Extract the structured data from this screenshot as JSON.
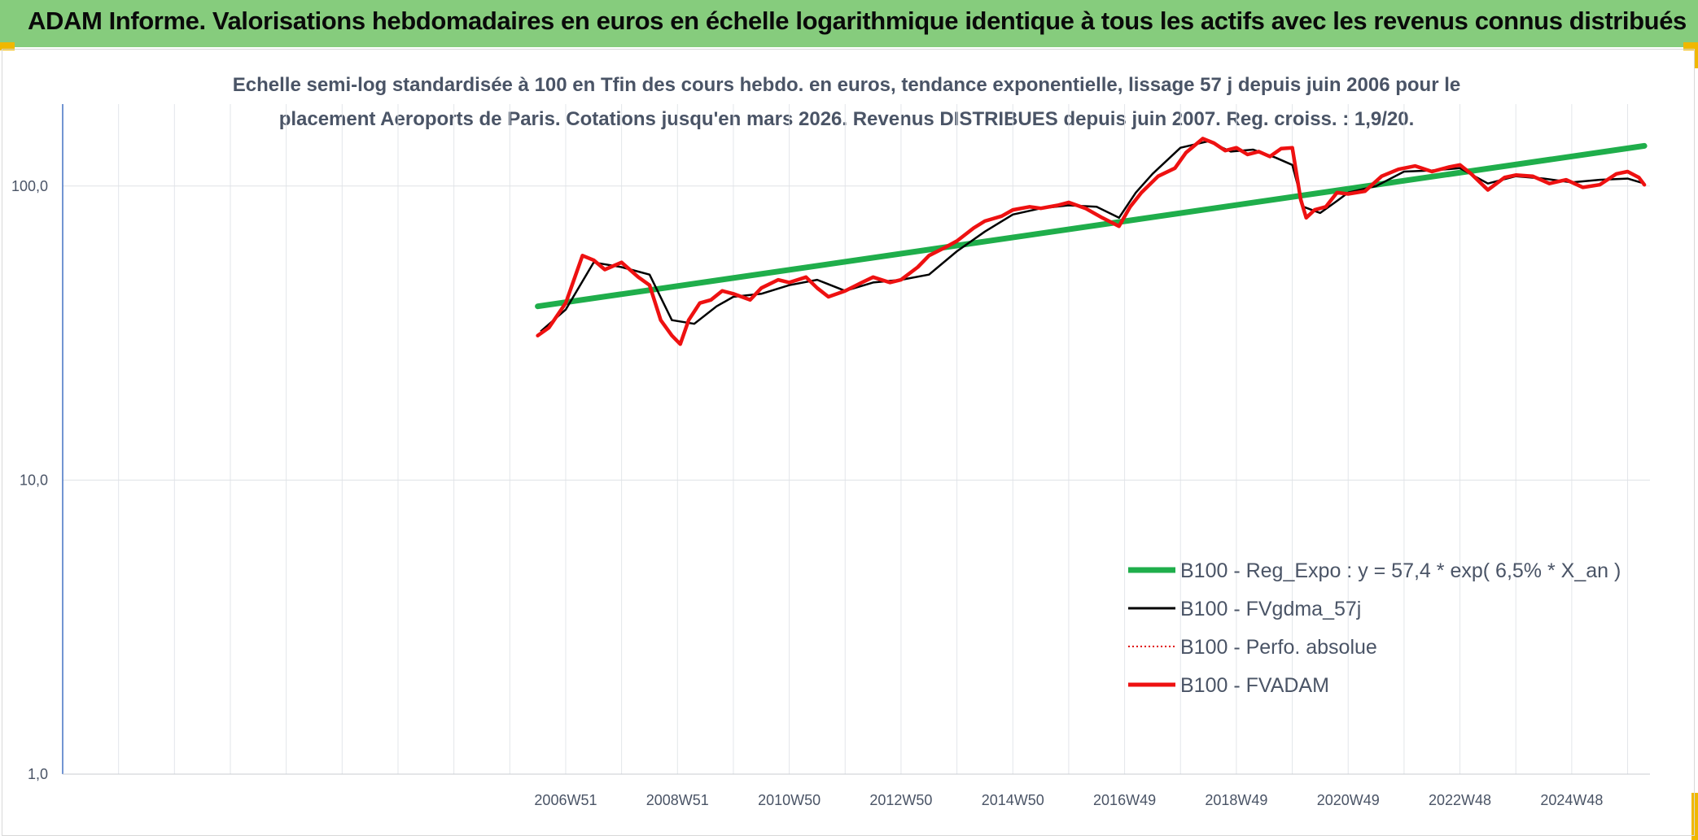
{
  "header": {
    "title": "ADAM Informe. Valorisations hebdomadaires en euros en échelle logarithmique identique à tous les actifs avec les revenus connus distribués"
  },
  "chart_data": {
    "type": "line",
    "title_line1": "Echelle semi-log standardisée à 100 en Tfin des cours hebdo. en euros, tendance exponentielle, lissage 57 j depuis juin 2006 pour le",
    "title_line2": "placement Aeroports de Paris. Cotations jusqu'en mars 2026. Revenus DISTRIBUES depuis juin 2007. Reg. croiss. : 1,9/20.",
    "y_scale": "log",
    "ylim": [
      1,
      190
    ],
    "y_ticks": [
      1,
      10,
      100
    ],
    "y_tick_labels": [
      "1,0",
      "10,0",
      "100,0"
    ],
    "xlim": [
      1998.0,
      2026.4
    ],
    "x_tick_labels": [
      {
        "x": 2007.0,
        "label": "2006W51"
      },
      {
        "x": 2009.0,
        "label": "2008W51"
      },
      {
        "x": 2011.0,
        "label": "2010W50"
      },
      {
        "x": 2013.0,
        "label": "2012W50"
      },
      {
        "x": 2015.0,
        "label": "2014W50"
      },
      {
        "x": 2017.0,
        "label": "2016W49"
      },
      {
        "x": 2019.0,
        "label": "2018W49"
      },
      {
        "x": 2021.0,
        "label": "2020W49"
      },
      {
        "x": 2023.0,
        "label": "2022W48"
      },
      {
        "x": 2025.0,
        "label": "2024W48"
      }
    ],
    "grid": true,
    "legend_position": "bottom-right",
    "series": [
      {
        "name": "B100 - Reg_Expo : y = 57,4 * exp( 6,5% *  X_an )",
        "color": "#1fae4b",
        "style": "solid-thick",
        "x": [
          2006.5,
          2026.3
        ],
        "y": [
          39,
          137
        ]
      },
      {
        "name": "B100 - FVgdma_57j",
        "color": "#000000",
        "style": "solid",
        "x": [
          2006.55,
          2007.0,
          2007.5,
          2008.0,
          2008.5,
          2008.9,
          2009.3,
          2009.7,
          2010.0,
          2010.5,
          2011.0,
          2011.5,
          2012.0,
          2012.5,
          2013.0,
          2013.5,
          2014.0,
          2014.5,
          2015.0,
          2015.5,
          2016.0,
          2016.5,
          2016.9,
          2017.2,
          2017.5,
          2018.0,
          2018.5,
          2018.9,
          2019.3,
          2019.7,
          2020.0,
          2020.2,
          2020.5,
          2020.8,
          2021.0,
          2021.5,
          2022.0,
          2022.5,
          2023.0,
          2023.5,
          2024.0,
          2024.5,
          2025.0,
          2025.5,
          2026.0,
          2026.3
        ],
        "y": [
          32,
          38,
          55,
          53,
          50,
          35,
          34,
          39,
          42,
          43,
          46,
          48,
          44,
          47,
          48,
          50,
          60,
          70,
          80,
          84,
          86,
          85,
          78,
          95,
          110,
          135,
          142,
          131,
          133,
          125,
          118,
          85,
          81,
          89,
          95,
          100,
          112,
          113,
          115,
          102,
          108,
          106,
          103,
          105,
          106,
          102
        ]
      },
      {
        "name": "B100 - Perfo. absolue",
        "color": "#e00000",
        "style": "dotted",
        "x": [
          2006.5,
          2026.3
        ],
        "y": [
          31,
          100
        ]
      },
      {
        "name": "B100 - FVADAM",
        "color": "#ee1111",
        "style": "solid-thick",
        "x": [
          2006.5,
          2006.7,
          2007.0,
          2007.3,
          2007.5,
          2007.7,
          2008.0,
          2008.3,
          2008.5,
          2008.7,
          2008.9,
          2009.05,
          2009.2,
          2009.4,
          2009.6,
          2009.8,
          2010.0,
          2010.3,
          2010.5,
          2010.8,
          2011.0,
          2011.3,
          2011.5,
          2011.7,
          2012.0,
          2012.3,
          2012.5,
          2012.8,
          2013.0,
          2013.3,
          2013.5,
          2013.8,
          2014.0,
          2014.3,
          2014.5,
          2014.8,
          2015.0,
          2015.3,
          2015.5,
          2015.8,
          2016.0,
          2016.3,
          2016.6,
          2016.9,
          2017.1,
          2017.3,
          2017.6,
          2017.9,
          2018.1,
          2018.4,
          2018.6,
          2018.8,
          2019.0,
          2019.2,
          2019.4,
          2019.6,
          2019.8,
          2020.0,
          2020.15,
          2020.25,
          2020.4,
          2020.6,
          2020.8,
          2021.0,
          2021.3,
          2021.6,
          2021.9,
          2022.2,
          2022.5,
          2022.8,
          2023.0,
          2023.2,
          2023.5,
          2023.8,
          2024.0,
          2024.3,
          2024.6,
          2024.9,
          2025.2,
          2025.5,
          2025.8,
          2026.0,
          2026.2,
          2026.3
        ],
        "y": [
          31,
          33,
          40,
          58,
          56,
          52,
          55,
          49,
          46,
          35,
          31,
          29,
          35,
          40,
          41,
          44,
          43,
          41,
          45,
          48,
          47,
          49,
          45,
          42,
          44,
          47,
          49,
          47,
          48,
          53,
          58,
          62,
          65,
          72,
          76,
          79,
          83,
          85,
          84,
          86,
          88,
          84,
          78,
          73,
          85,
          95,
          108,
          115,
          130,
          145,
          140,
          132,
          135,
          128,
          131,
          126,
          134,
          135,
          90,
          78,
          83,
          85,
          95,
          94,
          96,
          108,
          114,
          117,
          112,
          116,
          118,
          110,
          97,
          107,
          109,
          108,
          102,
          105,
          99,
          101,
          110,
          112,
          107,
          101
        ]
      }
    ]
  }
}
